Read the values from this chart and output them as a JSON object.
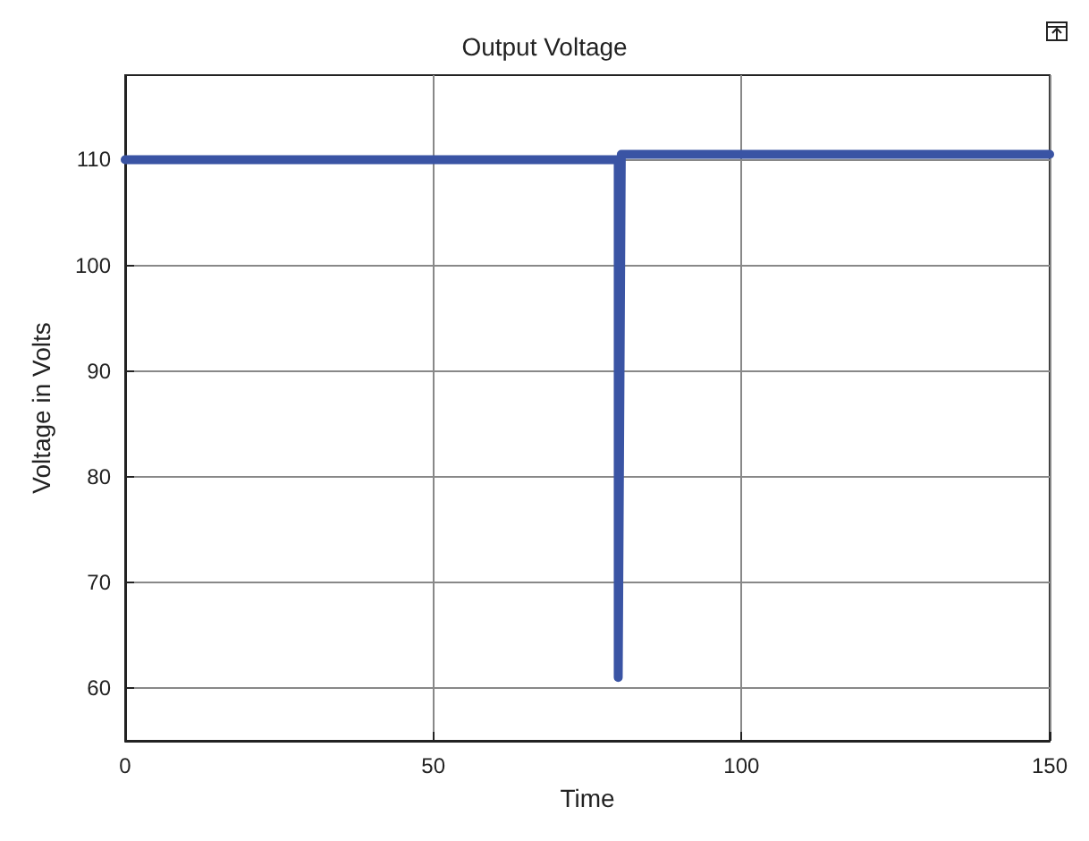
{
  "chart_data": {
    "type": "line",
    "title": "Output Voltage",
    "xlabel": "Time",
    "ylabel": "Voltage in Volts",
    "series": [
      {
        "color": "#3a54a4",
        "x": [
          0,
          80,
          80,
          80.5,
          150
        ],
        "values": [
          110,
          110,
          61,
          110.5,
          110.5
        ]
      }
    ],
    "xlim": [
      0,
      150
    ],
    "xticks": [
      0,
      50,
      100,
      150
    ],
    "ylim": [
      55,
      118
    ],
    "yticks": [
      60,
      70,
      80,
      90,
      100,
      110
    ],
    "grid": true,
    "marker": "none",
    "line_style": "solid"
  }
}
